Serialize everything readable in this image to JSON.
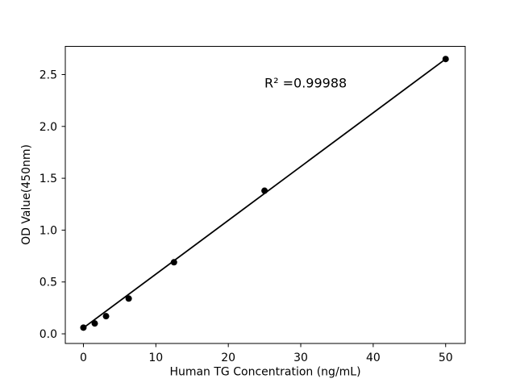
{
  "figure": {
    "background": "#ffffff"
  },
  "chart_data": {
    "type": "scatter",
    "title": "",
    "xlabel": "Human TG Concentration (ng/mL)",
    "ylabel": "OD Value(450nm)",
    "x": [
      0,
      1.5625,
      3.125,
      6.25,
      12.5,
      25,
      50
    ],
    "y": [
      0.06,
      0.1,
      0.17,
      0.34,
      0.69,
      1.38,
      2.65
    ],
    "fit_line": {
      "x": [
        0,
        50
      ],
      "y": [
        0.057,
        2.65
      ]
    },
    "annotation": {
      "text": "R² =0.99988"
    },
    "xticks": [
      0,
      10,
      20,
      30,
      40,
      50
    ],
    "xtick_labels": [
      "0",
      "10",
      "20",
      "30",
      "40",
      "50"
    ],
    "yticks": [
      0,
      0.5,
      1,
      1.5,
      2,
      2.5
    ],
    "ytick_labels": [
      "0.0",
      "0.5",
      "1.0",
      "1.5",
      "2.0",
      "2.5"
    ],
    "xlim": [
      -2.5,
      52.7
    ],
    "ylim": [
      -0.093,
      2.772
    ],
    "grid": false,
    "legend": false,
    "marker_color": "#000000",
    "line_color": "#000000",
    "axis_color": "#000000",
    "marker_radius_px": 4
  }
}
